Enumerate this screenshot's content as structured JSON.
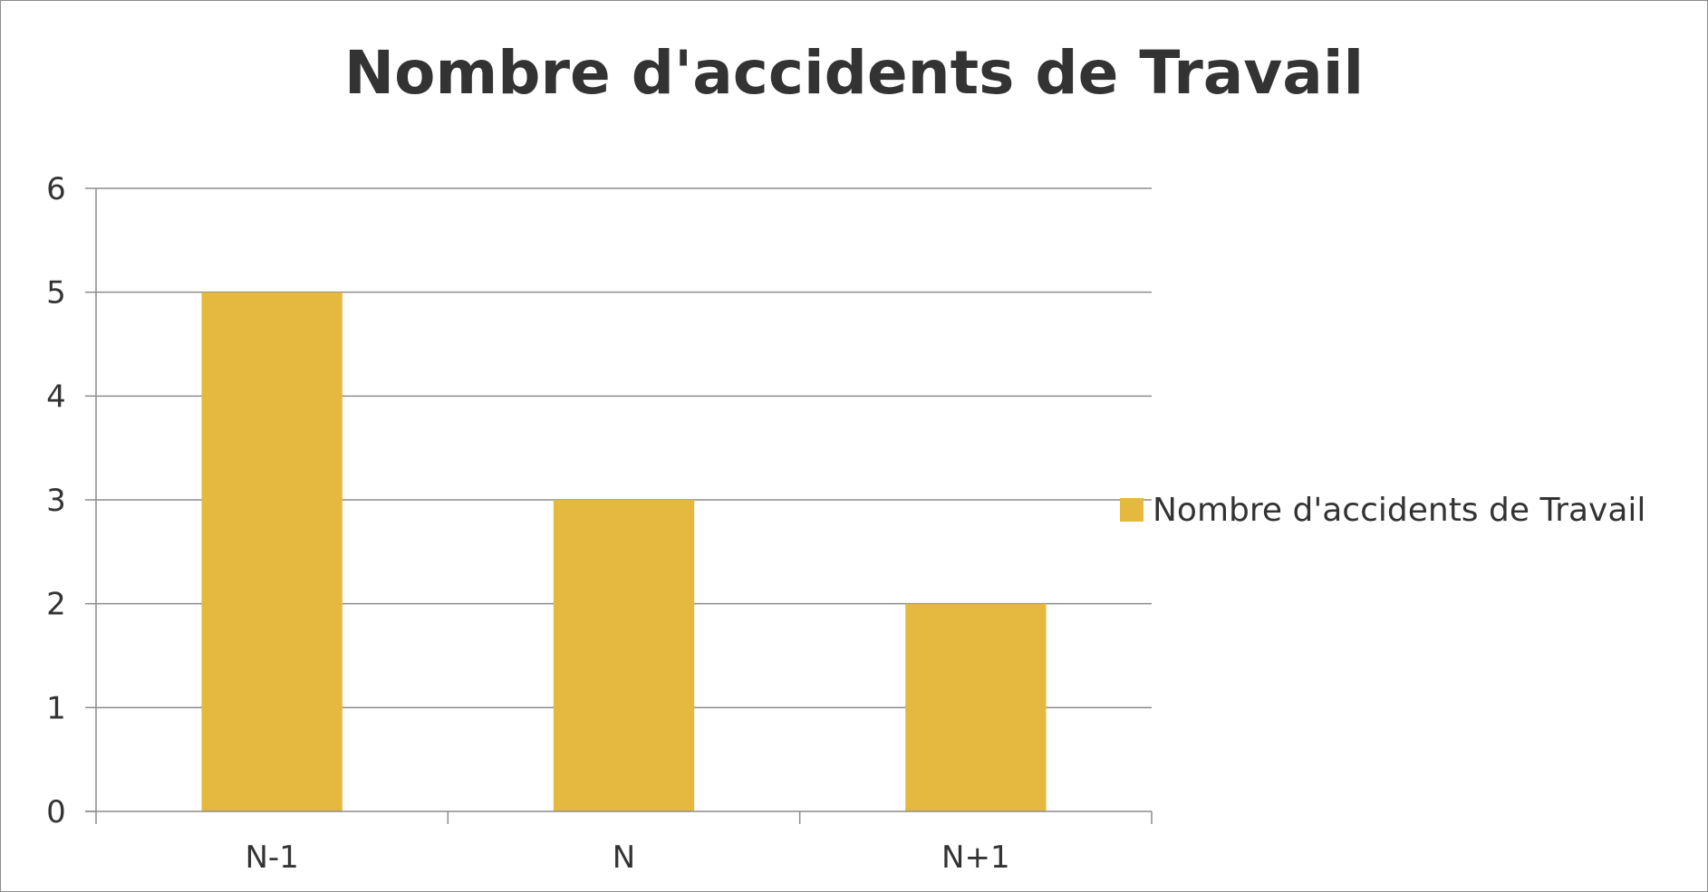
{
  "chart_data": {
    "type": "bar",
    "title": "Nombre d'accidents de Travail",
    "categories": [
      "N-1",
      "N",
      "N+1"
    ],
    "series": [
      {
        "name": "Nombre d'accidents de Travail",
        "values": [
          5,
          3,
          2
        ],
        "color": "#E5B840"
      }
    ],
    "xlabel": "",
    "ylabel": "",
    "ylim": [
      0,
      6
    ],
    "yticks": [
      "0",
      "1",
      "2",
      "3",
      "4",
      "5",
      "6"
    ],
    "grid": true,
    "legend": "right"
  },
  "colors": {
    "gridline": "#8c8c8c",
    "axis": "#8c8c8c",
    "text": "#333333"
  }
}
